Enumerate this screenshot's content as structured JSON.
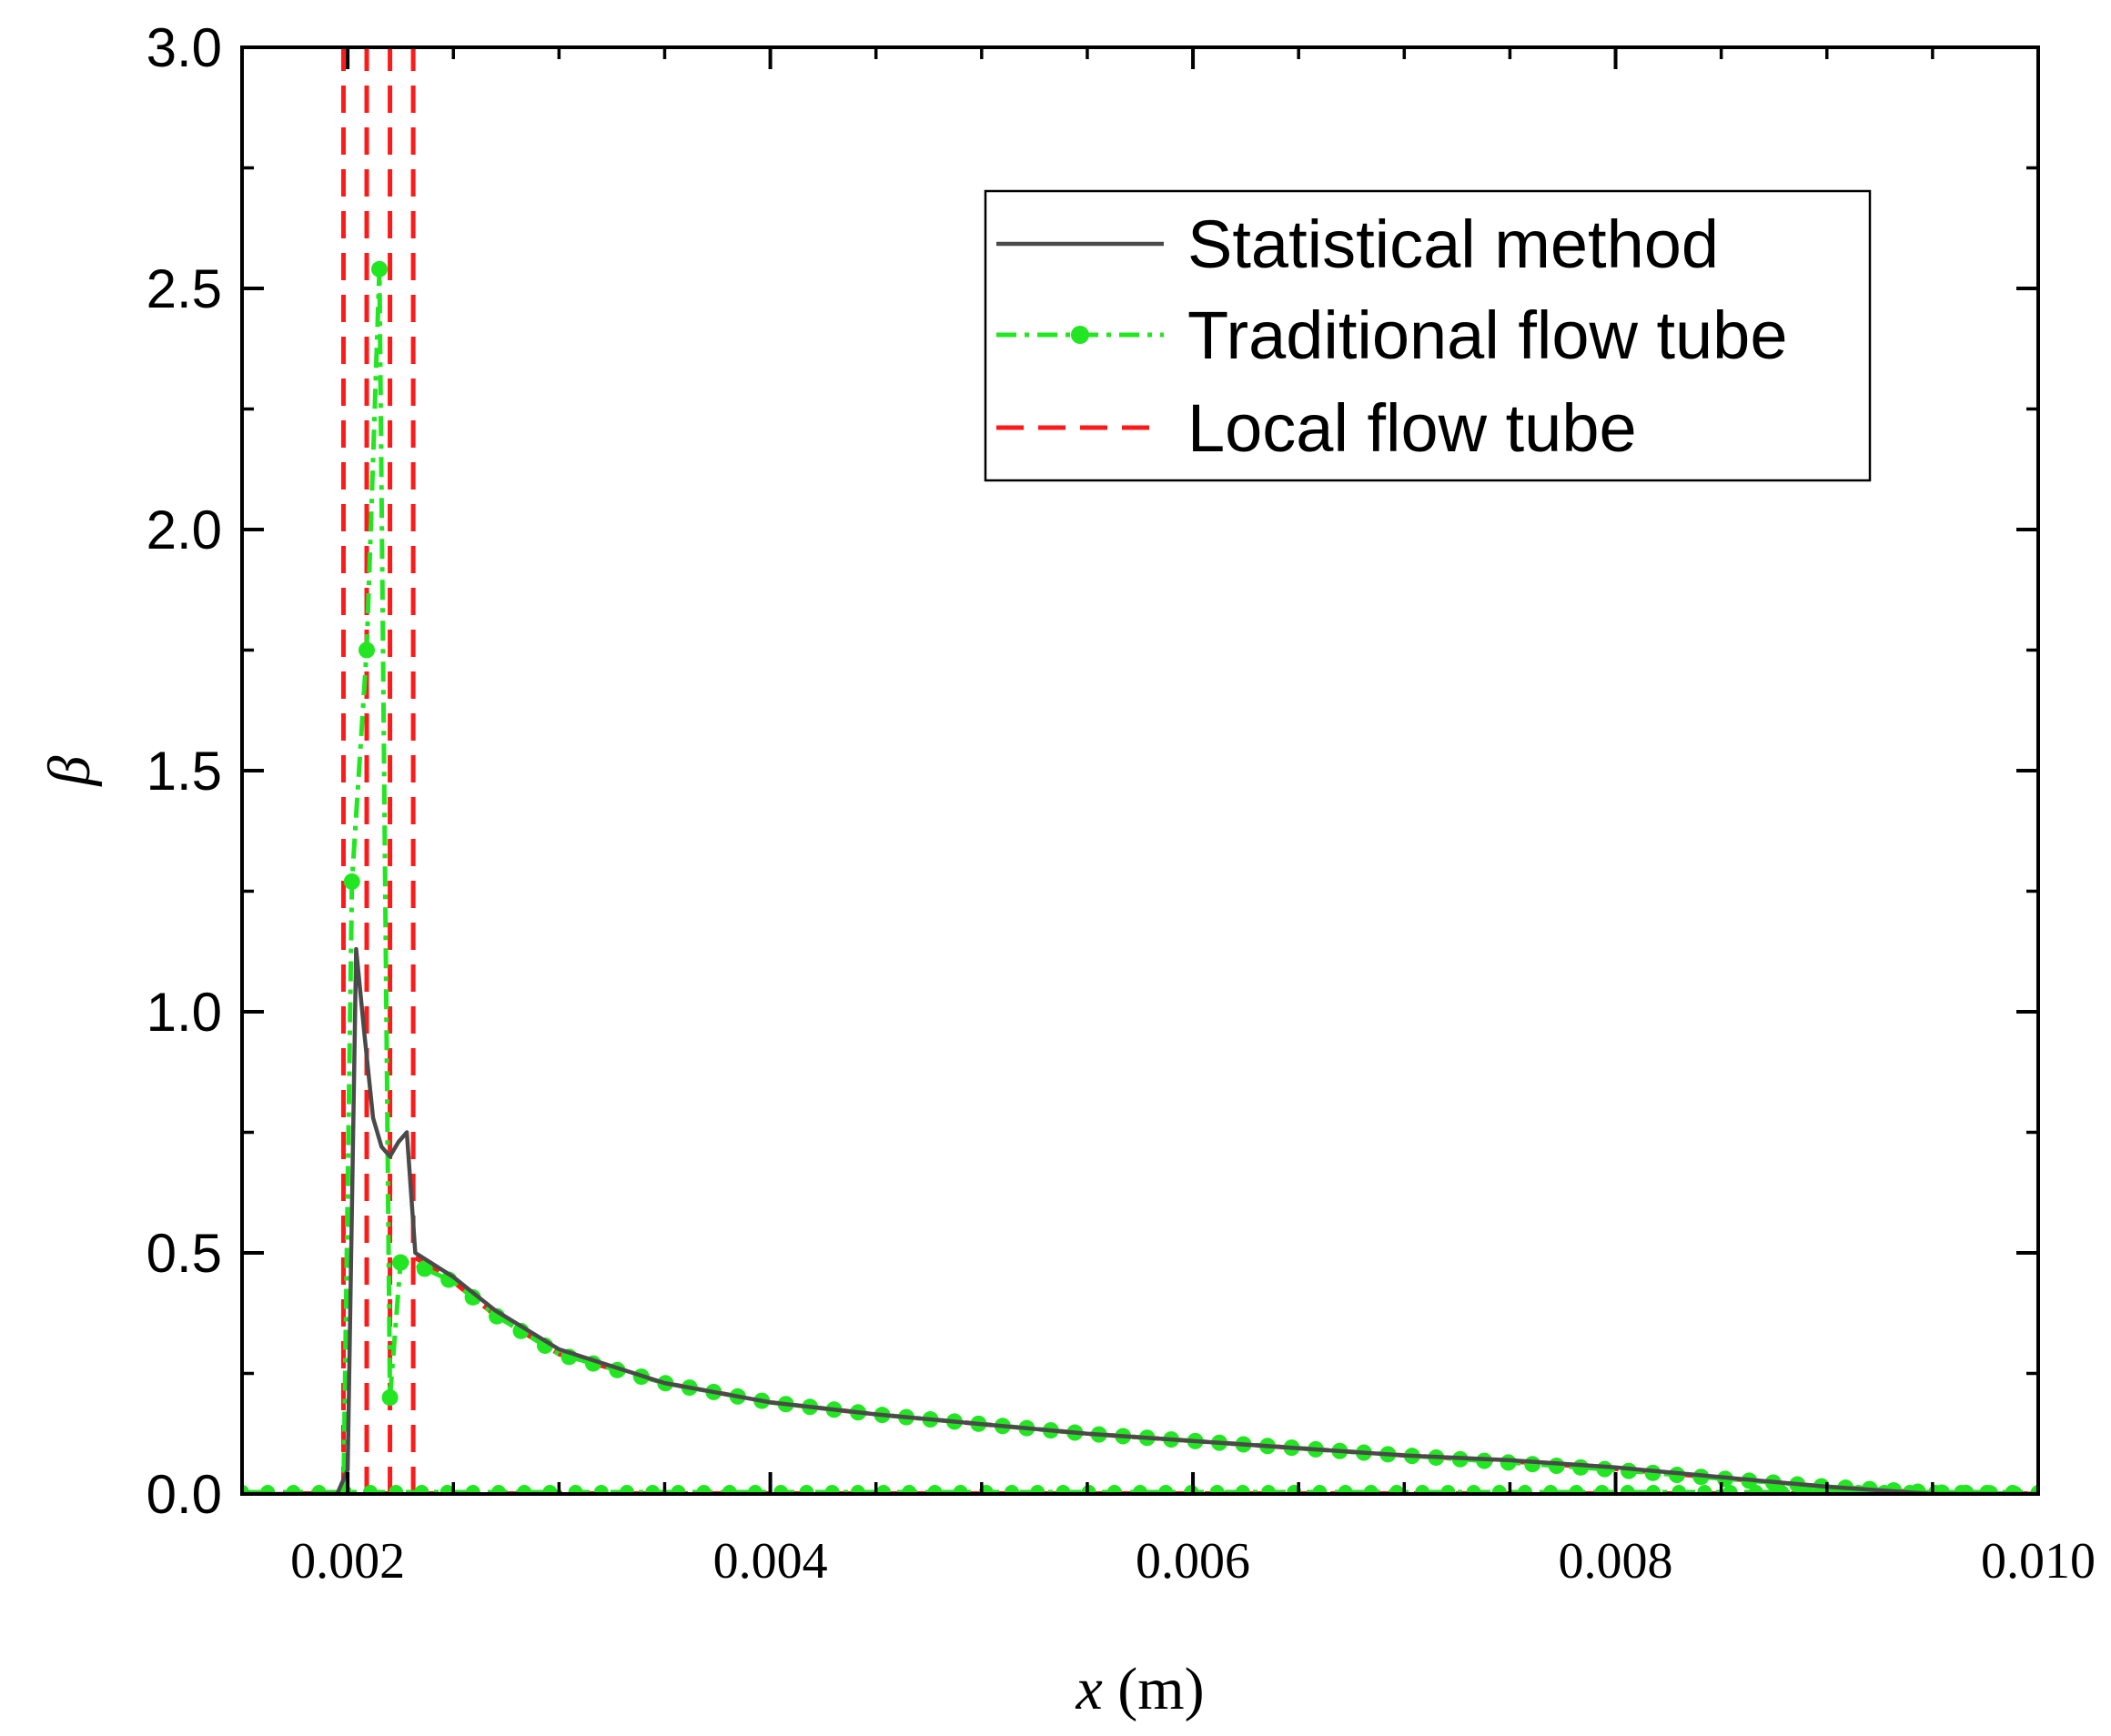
{
  "chart_data": {
    "type": "line",
    "title": "",
    "xlabel": {
      "symbol": "x",
      "unit": "(m)"
    },
    "ylabel": {
      "symbol": "β"
    },
    "xlim": [
      0.0015,
      0.01
    ],
    "ylim": [
      0.0,
      3.0
    ],
    "xticks": [
      "0.002",
      "0.004",
      "0.006",
      "0.008",
      "0.010"
    ],
    "yticks": [
      "0.0",
      "0.5",
      "1.0",
      "1.5",
      "2.0",
      "2.5",
      "3.0"
    ],
    "grid": false,
    "legend_position": "top-right",
    "colors": {
      "statistical": "#4a4a4a",
      "traditional": "#22e622",
      "local": "#ff1a1a"
    },
    "series": [
      {
        "name": "Statistical method",
        "style": "solid",
        "x": [
          0.0015,
          0.00195,
          0.002,
          0.00204,
          0.00208,
          0.00212,
          0.00216,
          0.0022,
          0.00224,
          0.00228,
          0.00232,
          0.0025,
          0.0027,
          0.003,
          0.0035,
          0.004,
          0.0045,
          0.005,
          0.0055,
          0.006,
          0.0065,
          0.007,
          0.0075,
          0.008,
          0.0085,
          0.009,
          0.0095,
          0.01
        ],
        "y": [
          0.0,
          0.0,
          0.05,
          1.13,
          0.95,
          0.78,
          0.72,
          0.7,
          0.73,
          0.75,
          0.5,
          0.45,
          0.38,
          0.3,
          0.23,
          0.19,
          0.165,
          0.145,
          0.125,
          0.11,
          0.095,
          0.08,
          0.07,
          0.055,
          0.035,
          0.015,
          0.0,
          0.0
        ]
      },
      {
        "name": "Traditional flow tube",
        "style": "dashdot-markers",
        "x": [
          0.0015,
          0.00198,
          0.00202,
          0.00209,
          0.00215,
          0.0022,
          0.00225,
          0.0023,
          0.0025,
          0.0027,
          0.003,
          0.0035,
          0.004,
          0.0045,
          0.005,
          0.0055,
          0.006,
          0.0065,
          0.007,
          0.0075,
          0.008,
          0.0085,
          0.009,
          0.0095,
          0.01
        ],
        "y": [
          0.0,
          0.0,
          1.27,
          1.75,
          2.54,
          0.2,
          0.48,
          0.48,
          0.44,
          0.37,
          0.29,
          0.23,
          0.19,
          0.165,
          0.145,
          0.125,
          0.11,
          0.095,
          0.08,
          0.065,
          0.05,
          0.032,
          0.015,
          0.003,
          0.0
        ],
        "baseline_y": 0.0
      },
      {
        "name": "Local flow tube",
        "style": "dashed",
        "spikes_x": [
          0.00198,
          0.00209,
          0.0022,
          0.00231
        ],
        "x": [
          0.00232,
          0.0025,
          0.0027,
          0.003,
          0.0035,
          0.004,
          0.0045,
          0.005,
          0.0055,
          0.006,
          0.0065,
          0.007,
          0.0075,
          0.008,
          0.0085,
          0.009,
          0.0095,
          0.01
        ],
        "y": [
          0.49,
          0.44,
          0.37,
          0.29,
          0.23,
          0.19,
          0.165,
          0.145,
          0.125,
          0.11,
          0.095,
          0.08,
          0.068,
          0.052,
          0.033,
          0.015,
          0.002,
          0.0
        ]
      }
    ]
  }
}
